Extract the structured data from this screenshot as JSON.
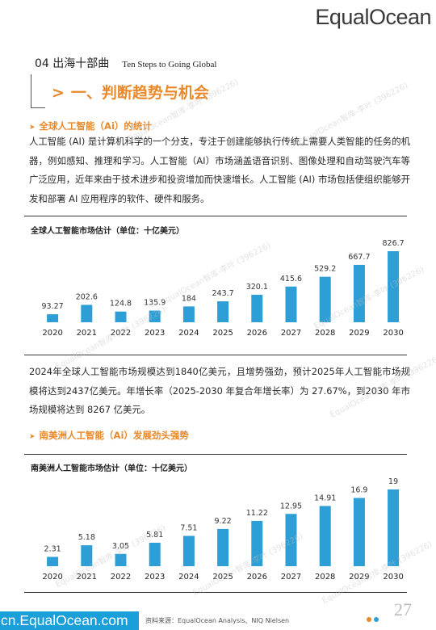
{
  "brand": "EqualOcean",
  "section": {
    "label": "04 出海十部曲",
    "label_en": "Ten Steps to Going Global"
  },
  "heading": "一、判断趋势与机会",
  "sub1": "全球人工智能（Ai）的统计",
  "para1": "人工智能 (AI) 是计算机科学的一个分支，专注于创建能够执行传统上需要人类智能的任务的机器，例如感知、推理和学习。人工智能（AI）市场涵盖语音识别、图像处理和自动驾驶汽车等广泛应用，近年来由于技术进步和投资增加而快速增长。人工智能 (AI) 市场包括使组织能够开发和部署 AI 应用程序的软件、硬件和服务。",
  "para2": "2024年全球人工智能市场规模达到1840亿美元，且增势强劲，预计2025年人工智能市场规模将达到2437亿美元。年增长率（2025-2030 年复合年增长率）为 27.67%，到2030 年市场规模将达到 8267 亿美元。",
  "sub2": "南美洲人工智能（Ai）发展劲头强势",
  "footer": {
    "site": "cn.EqualOcean.com",
    "source": "资料来源：EqualOcean Analysis、NIQ Nielsen",
    "page": "27"
  },
  "watermark": "EqualOcean智库-李叶 (396226)",
  "colors": {
    "bar": "#2e9fd6",
    "accent": "#e8892b",
    "footer": "#1b9fd8"
  },
  "chart_data": [
    {
      "type": "bar",
      "title": "全球人工智能市场估计（单位：十亿美元）",
      "categories": [
        "2020",
        "2021",
        "2022",
        "2023",
        "2024",
        "2025",
        "2026",
        "2027",
        "2028",
        "2029",
        "2030"
      ],
      "values": [
        93.27,
        202.6,
        124.8,
        135.9,
        184,
        243.7,
        320.1,
        415.6,
        529.2,
        667.7,
        826.7
      ],
      "labels": [
        "93.27",
        "202.6",
        "124.8",
        "135.9",
        "184",
        "243.7",
        "320.1",
        "415.6",
        "529.2",
        "667.7",
        "826.7"
      ],
      "ylim": [
        0,
        826.7
      ],
      "xlabel": "",
      "ylabel": "",
      "grid": false
    },
    {
      "type": "bar",
      "title": "南美洲人工智能市场估计（单位：十亿美元）",
      "categories": [
        "2020",
        "2021",
        "2022",
        "2023",
        "2024",
        "2025",
        "2026",
        "2027",
        "2028",
        "2029",
        "2030"
      ],
      "values": [
        2.31,
        5.18,
        3.05,
        5.81,
        7.51,
        9.22,
        11.22,
        12.95,
        14.91,
        16.9,
        19
      ],
      "labels": [
        "2.31",
        "5.18",
        "3.05",
        "5.81",
        "7.51",
        "9.22",
        "11.22",
        "12.95",
        "14.91",
        "16.9",
        "19"
      ],
      "ylim": [
        0,
        19
      ],
      "xlabel": "",
      "ylabel": "",
      "grid": false
    }
  ]
}
